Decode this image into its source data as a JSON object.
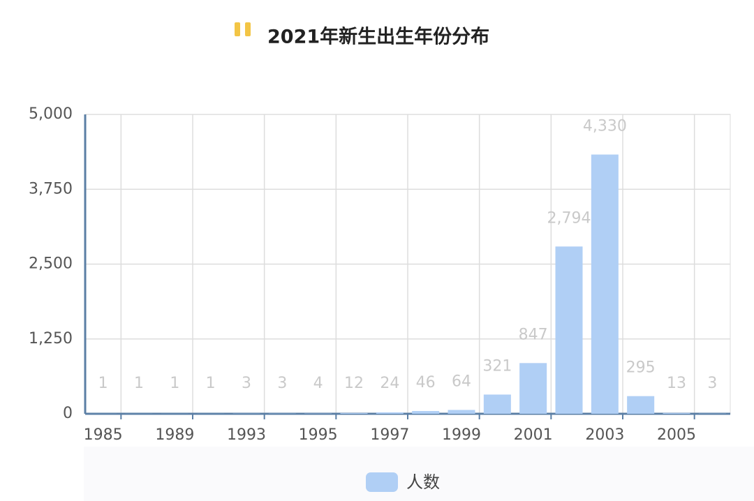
{
  "chart_data": {
    "type": "bar",
    "title": "2021年新生出生年份分布",
    "categories": [
      "1985",
      null,
      "1989",
      null,
      "1993",
      null,
      "1995",
      null,
      "1997",
      null,
      "1999",
      null,
      "2001",
      null,
      "2003",
      null,
      "2005",
      null
    ],
    "series": [
      {
        "name": "人数",
        "color": "#b0cff5",
        "values": [
          1,
          1,
          1,
          1,
          3,
          3,
          4,
          12,
          24,
          46,
          64,
          321,
          847,
          2794,
          4330,
          295,
          13,
          3
        ],
        "value_labels": [
          "1",
          "1",
          "1",
          "1",
          "3",
          "3",
          "4",
          "12",
          "24",
          "46",
          "64",
          "321",
          "847",
          "2,794",
          "4,330",
          "295",
          "13",
          "3"
        ]
      }
    ],
    "ylim": [
      0,
      5000
    ],
    "yticks": [
      0,
      {
        "value": 1250,
        "label": "1,250"
      },
      {
        "value": 2500,
        "label": "2,500"
      },
      {
        "value": 3750,
        "label": "3,750"
      },
      {
        "value": 5000,
        "label": "5,000"
      }
    ],
    "grid": true
  }
}
